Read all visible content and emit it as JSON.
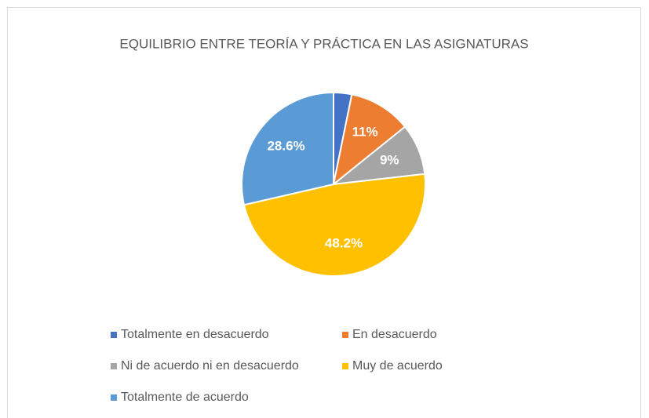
{
  "chart_data": {
    "type": "pie",
    "title": "EQUILIBRIO ENTRE TEORÍA Y PRÁCTICA EN LAS ASIGNATURAS",
    "categories": [
      "Totalmente en desacuerdo",
      "En desacuerdo",
      "Ni de acuerdo ni en desacuerdo",
      "Muy de acuerdo",
      "Totalmente de acuerdo"
    ],
    "values": [
      3.2,
      11,
      9,
      48.2,
      28.6
    ],
    "value_labels": [
      null,
      "11%",
      "9%",
      "48.2%",
      "28.6%"
    ],
    "colors": [
      "#4472c4",
      "#ed7d31",
      "#a5a5a5",
      "#ffc000",
      "#5b9bd5"
    ],
    "legend": "bottom"
  }
}
